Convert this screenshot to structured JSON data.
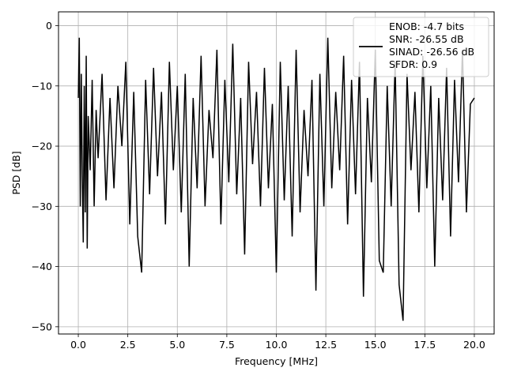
{
  "chart_data": {
    "type": "line",
    "title": "",
    "xlabel": "Frequency [MHz]",
    "ylabel": "PSD [dB]",
    "xlim": [
      -1.0,
      21.0
    ],
    "ylim": [
      -51.2,
      2.3
    ],
    "xticks": [
      0.0,
      2.5,
      5.0,
      7.5,
      10.0,
      12.5,
      15.0,
      17.5,
      20.0
    ],
    "xtick_labels": [
      "0.0",
      "2.5",
      "5.0",
      "7.5",
      "10.0",
      "12.5",
      "15.0",
      "17.5",
      "20.0"
    ],
    "yticks": [
      0,
      -10,
      -20,
      -30,
      -40,
      -50
    ],
    "ytick_labels": [
      "0",
      "−10",
      "−20",
      "−30",
      "−40",
      "−50"
    ],
    "grid": true,
    "series_color": "#000000",
    "legend": {
      "position": "upper right",
      "entries": [
        "ENOB: -4.7 bits",
        "SNR: -26.55 dB",
        "SINAD: -26.56 dB",
        "SFDR: 0.9"
      ]
    },
    "series": [
      {
        "name": "ENOB: -4.7 bits\nSNR: -26.55 dB\nSINAD: -26.56 dB\nSFDR: 0.9",
        "x": [
          0.0,
          0.05,
          0.1,
          0.15,
          0.2,
          0.25,
          0.3,
          0.35,
          0.4,
          0.45,
          0.5,
          0.6,
          0.7,
          0.8,
          0.9,
          1.0,
          1.2,
          1.4,
          1.6,
          1.8,
          2.0,
          2.2,
          2.4,
          2.6,
          2.8,
          3.0,
          3.2,
          3.4,
          3.6,
          3.8,
          4.0,
          4.2,
          4.4,
          4.6,
          4.8,
          5.0,
          5.2,
          5.4,
          5.6,
          5.8,
          6.0,
          6.2,
          6.4,
          6.6,
          6.8,
          7.0,
          7.2,
          7.4,
          7.6,
          7.8,
          8.0,
          8.2,
          8.4,
          8.6,
          8.8,
          9.0,
          9.2,
          9.4,
          9.6,
          9.8,
          10.0,
          10.2,
          10.4,
          10.6,
          10.8,
          11.0,
          11.2,
          11.4,
          11.6,
          11.8,
          12.0,
          12.2,
          12.4,
          12.6,
          12.8,
          13.0,
          13.2,
          13.4,
          13.6,
          13.8,
          14.0,
          14.2,
          14.4,
          14.6,
          14.8,
          15.0,
          15.2,
          15.4,
          15.6,
          15.8,
          16.0,
          16.2,
          16.4,
          16.6,
          16.8,
          17.0,
          17.2,
          17.4,
          17.6,
          17.8,
          18.0,
          18.2,
          18.4,
          18.6,
          18.8,
          19.0,
          19.2,
          19.4,
          19.6,
          19.8,
          20.0
        ],
        "y": [
          -12,
          -2,
          -30,
          -8,
          -25,
          -36,
          -10,
          -31,
          -5,
          -37,
          -15,
          -24,
          -9,
          -30,
          -14,
          -22,
          -8,
          -29,
          -12,
          -27,
          -10,
          -20,
          -6,
          -33,
          -11,
          -35,
          -41,
          -9,
          -28,
          -7,
          -25,
          -11,
          -33,
          -6,
          -24,
          -10,
          -31,
          -8,
          -40,
          -12,
          -27,
          -5,
          -30,
          -14,
          -22,
          -4,
          -33,
          -9,
          -26,
          -3,
          -28,
          -12,
          -38,
          -6,
          -23,
          -11,
          -30,
          -7,
          -27,
          -13,
          -41,
          -6,
          -29,
          -10,
          -35,
          -4,
          -31,
          -14,
          -25,
          -9,
          -44,
          -8,
          -30,
          -2,
          -27,
          -11,
          -24,
          -5,
          -33,
          -9,
          -28,
          -6,
          -45,
          -12,
          -26,
          -4,
          -39,
          -41,
          -10,
          -30,
          -6,
          -43,
          -49,
          -8,
          -24,
          -11,
          -31,
          -5,
          -27,
          -10,
          -40,
          -12,
          -29,
          -7,
          -35,
          -9,
          -26,
          -4,
          -31,
          -13,
          -12
        ]
      }
    ]
  }
}
